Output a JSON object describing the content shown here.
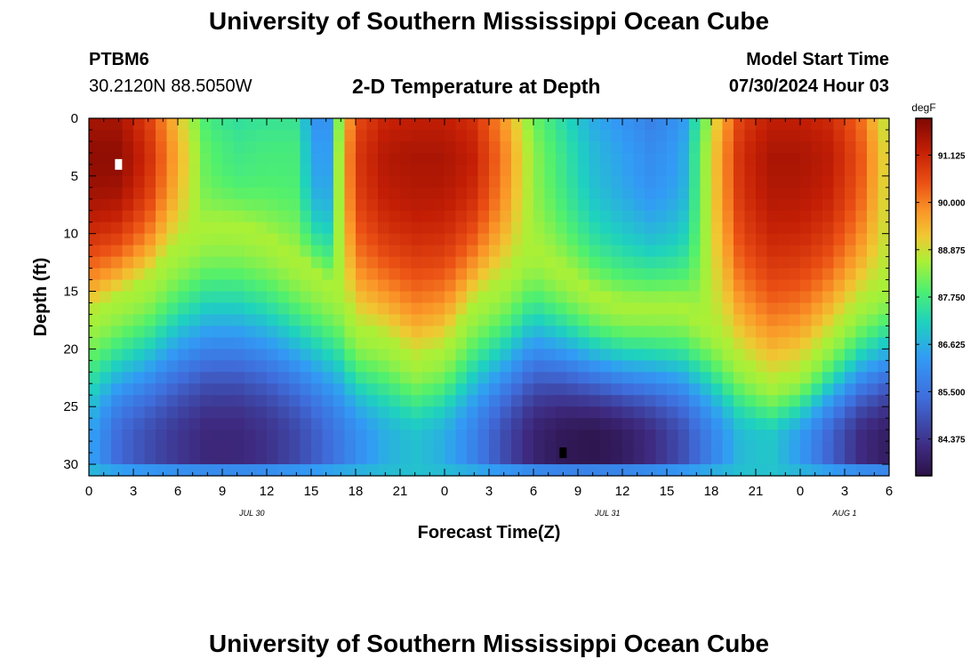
{
  "page": {
    "title": "University of Southern Mississippi Ocean Cube",
    "footer_title": "University of Southern Mississippi Ocean Cube",
    "station_id": "PTBM6",
    "coordinates": "30.2120N  88.5050W",
    "model_start_label": "Model Start Time",
    "model_start_value": "07/30/2024 Hour 03"
  },
  "chart_data": {
    "type": "heatmap",
    "title": "2-D Temperature at Depth",
    "xlabel": "Forecast Time(Z)",
    "ylabel": "Depth (ft)",
    "units": "degF",
    "xlim": [
      0,
      54
    ],
    "ylim": [
      31,
      0
    ],
    "x_ticks": [
      {
        "hour": 0,
        "label": "0"
      },
      {
        "hour": 3,
        "label": "3"
      },
      {
        "hour": 6,
        "label": "6"
      },
      {
        "hour": 9,
        "label": "9"
      },
      {
        "hour": 12,
        "label": "12"
      },
      {
        "hour": 15,
        "label": "15"
      },
      {
        "hour": 18,
        "label": "18"
      },
      {
        "hour": 21,
        "label": "21"
      },
      {
        "hour": 24,
        "label": "0"
      },
      {
        "hour": 27,
        "label": "3"
      },
      {
        "hour": 30,
        "label": "6"
      },
      {
        "hour": 33,
        "label": "9"
      },
      {
        "hour": 36,
        "label": "12"
      },
      {
        "hour": 39,
        "label": "15"
      },
      {
        "hour": 42,
        "label": "18"
      },
      {
        "hour": 45,
        "label": "21"
      },
      {
        "hour": 48,
        "label": "0"
      },
      {
        "hour": 51,
        "label": "3"
      },
      {
        "hour": 54,
        "label": "6"
      }
    ],
    "date_labels": [
      {
        "hour": 11,
        "label": "JUL 30"
      },
      {
        "hour": 35,
        "label": "JUL 31"
      },
      {
        "hour": 51,
        "label": "AUG 1"
      }
    ],
    "y_ticks": [
      0,
      5,
      10,
      15,
      20,
      25,
      30
    ],
    "colorbar": {
      "min": 83.5,
      "max": 92.0,
      "ticks": [
        "91.125",
        "90.000",
        "88.875",
        "87.750",
        "86.625",
        "85.500",
        "84.375"
      ]
    },
    "grid": false,
    "cell_hours": 0.75,
    "cell_depth_ft": 1.0,
    "warm_layer_bottom_ft_by_hour": [
      [
        0,
        17
      ],
      [
        4,
        14
      ],
      [
        6,
        11
      ],
      [
        8,
        9
      ],
      [
        10,
        9
      ],
      [
        12,
        10
      ],
      [
        14,
        12
      ],
      [
        16,
        14
      ],
      [
        17,
        15
      ],
      [
        18,
        18
      ],
      [
        20,
        19
      ],
      [
        22,
        21
      ],
      [
        24,
        20
      ],
      [
        26,
        16
      ],
      [
        28,
        14
      ],
      [
        30,
        11
      ],
      [
        32,
        13
      ],
      [
        34,
        15
      ],
      [
        36,
        16
      ],
      [
        38,
        16
      ],
      [
        40,
        16
      ],
      [
        42,
        18
      ],
      [
        44,
        21
      ],
      [
        46,
        23
      ],
      [
        48,
        22
      ],
      [
        50,
        19
      ],
      [
        52,
        16
      ],
      [
        54,
        14
      ]
    ],
    "surface_max_temp_by_hour": [
      [
        0,
        91.8
      ],
      [
        2,
        91.8
      ],
      [
        4,
        91.0
      ],
      [
        6,
        89.5
      ],
      [
        8,
        88.0
      ],
      [
        10,
        87.7
      ],
      [
        12,
        87.8
      ],
      [
        14,
        87.8
      ],
      [
        15,
        86.6
      ],
      [
        16,
        86.0
      ],
      [
        17,
        88.9
      ],
      [
        18,
        90.8
      ],
      [
        20,
        91.4
      ],
      [
        22,
        91.5
      ],
      [
        24,
        91.5
      ],
      [
        26,
        91.2
      ],
      [
        28,
        90.0
      ],
      [
        30,
        88.4
      ],
      [
        32,
        87.6
      ],
      [
        34,
        86.8
      ],
      [
        36,
        86.4
      ],
      [
        38,
        86.0
      ],
      [
        40,
        86.4
      ],
      [
        42,
        89.0
      ],
      [
        44,
        91.0
      ],
      [
        46,
        91.5
      ],
      [
        48,
        91.5
      ],
      [
        50,
        91.3
      ],
      [
        52,
        90.5
      ],
      [
        54,
        88.8
      ]
    ],
    "bottom_min_temp_by_hour": [
      [
        0,
        86.5
      ],
      [
        2,
        85.3
      ],
      [
        4,
        84.8
      ],
      [
        6,
        84.4
      ],
      [
        8,
        84.1
      ],
      [
        10,
        84.1
      ],
      [
        12,
        84.3
      ],
      [
        14,
        84.7
      ],
      [
        16,
        85.3
      ],
      [
        18,
        86.0
      ],
      [
        20,
        86.6
      ],
      [
        22,
        86.9
      ],
      [
        24,
        86.6
      ],
      [
        26,
        85.8
      ],
      [
        28,
        84.8
      ],
      [
        30,
        84.0
      ],
      [
        32,
        83.7
      ],
      [
        34,
        83.6
      ],
      [
        36,
        83.8
      ],
      [
        38,
        84.2
      ],
      [
        40,
        84.8
      ],
      [
        42,
        85.8
      ],
      [
        44,
        86.8
      ],
      [
        46,
        87.0
      ],
      [
        48,
        86.3
      ],
      [
        50,
        85.2
      ],
      [
        52,
        84.2
      ],
      [
        54,
        83.8
      ]
    ],
    "surface_layer_ft_by_hour": [
      [
        0,
        3
      ],
      [
        54,
        3
      ]
    ],
    "bottom_core_ft": 28,
    "bottom_mixed_layer_ft": 1.5,
    "markers": [
      {
        "hour": 2,
        "depth_ft": 4,
        "color": "#ffffff"
      },
      {
        "hour": 32,
        "depth_ft": 29,
        "color": "#000000"
      }
    ]
  }
}
